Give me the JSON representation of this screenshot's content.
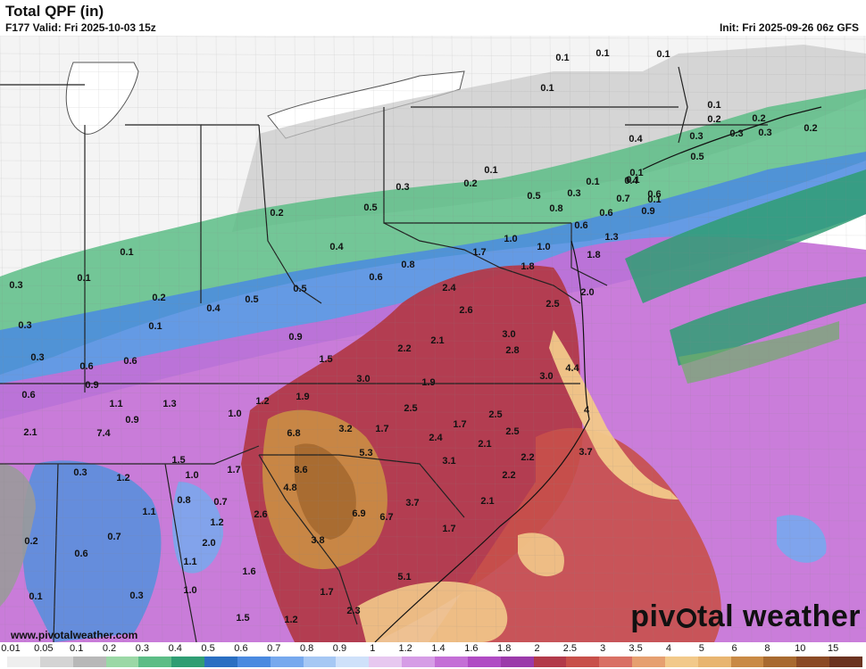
{
  "header": {
    "title": "Total QPF (in)",
    "valid": "F177 Valid: Fri 2025-10-03 15z",
    "init": "Init: Fri 2025-09-26 06z GFS"
  },
  "footer": {
    "url": "www.pivotalweather.com",
    "brand_pre": "piv",
    "brand_post": "tal weather"
  },
  "legend": {
    "ticks": [
      "0.01",
      "0.05",
      "0.1",
      "0.2",
      "0.3",
      "0.4",
      "0.5",
      "0.6",
      "0.7",
      "0.8",
      "0.9",
      "1",
      "1.2",
      "1.4",
      "1.6",
      "1.8",
      "2",
      "2.5",
      "3",
      "3.5",
      "4",
      "5",
      "6",
      "8",
      "10",
      "15"
    ],
    "colors": [
      "#eeeeee",
      "#d4d4d4",
      "#b8b8b8",
      "#9bd8a6",
      "#5cbd86",
      "#2f9e73",
      "#2a6fc2",
      "#4a8ae0",
      "#77a9ee",
      "#a6c8f4",
      "#cfe1fa",
      "#e7c8f0",
      "#d69de6",
      "#c46fd6",
      "#b04bc4",
      "#9b3aaa",
      "#b23a4a",
      "#c8504a",
      "#d97064",
      "#e6a070",
      "#f2c98a",
      "#e8b570",
      "#c98a45",
      "#a86a30",
      "#8a4a25",
      "#6a3320"
    ]
  },
  "map_labels": [
    {
      "v": "0.1"
    },
    {
      "v": "0.1"
    },
    {
      "v": "0.1"
    },
    {
      "v": "0.1"
    },
    {
      "v": "0.1"
    },
    {
      "v": "0.1"
    },
    {
      "v": "0.3"
    },
    {
      "v": "0.2"
    },
    {
      "v": "0.2"
    },
    {
      "v": "0.2"
    },
    {
      "v": "0.4"
    },
    {
      "v": "0.5"
    },
    {
      "v": "0.3"
    },
    {
      "v": "0.3"
    },
    {
      "v": "0.1"
    },
    {
      "v": "0.2"
    },
    {
      "v": "0.1"
    },
    {
      "v": "0.1"
    },
    {
      "v": "0.5"
    },
    {
      "v": "0.3"
    },
    {
      "v": "0.1"
    },
    {
      "v": "0.4"
    },
    {
      "v": "0.8"
    },
    {
      "v": "0.6"
    },
    {
      "v": "0.7"
    },
    {
      "v": "0.6"
    },
    {
      "v": "0.9"
    },
    {
      "v": "0.6"
    },
    {
      "v": "1.0"
    },
    {
      "v": "1.0"
    },
    {
      "v": "1.3"
    },
    {
      "v": "0.4"
    },
    {
      "v": "0.8"
    },
    {
      "v": "1.7"
    },
    {
      "v": "1.8"
    },
    {
      "v": "1.8"
    },
    {
      "v": "0.3"
    },
    {
      "v": "0.1"
    },
    {
      "v": "0.2"
    },
    {
      "v": "0.5"
    },
    {
      "v": "0.6"
    },
    {
      "v": "0.5"
    },
    {
      "v": "0.5"
    },
    {
      "v": "2.4"
    },
    {
      "v": "2.0"
    },
    {
      "v": "0.3"
    },
    {
      "v": "0.1"
    },
    {
      "v": "0.2"
    },
    {
      "v": "0.4"
    },
    {
      "v": "0.1"
    },
    {
      "v": "2.6"
    },
    {
      "v": "2.5"
    },
    {
      "v": "0.3"
    },
    {
      "v": "0.9"
    },
    {
      "v": "2.1"
    },
    {
      "v": "3.0"
    },
    {
      "v": "0.3"
    },
    {
      "v": "0.6"
    },
    {
      "v": "0.6"
    },
    {
      "v": "1.5"
    },
    {
      "v": "2.2"
    },
    {
      "v": "2.8"
    },
    {
      "v": "4.4"
    },
    {
      "v": "0.9"
    },
    {
      "v": "3.0"
    },
    {
      "v": "1.9"
    },
    {
      "v": "3.0"
    },
    {
      "v": "0.6"
    },
    {
      "v": "1.1"
    },
    {
      "v": "1.3"
    },
    {
      "v": "1.9"
    },
    {
      "v": "1.2"
    },
    {
      "v": "2.5"
    },
    {
      "v": "2.5"
    },
    {
      "v": "4"
    },
    {
      "v": "0.9"
    },
    {
      "v": "1.7"
    },
    {
      "v": "1.0"
    },
    {
      "v": "2.1"
    },
    {
      "v": "7.4"
    },
    {
      "v": "6.8"
    },
    {
      "v": "3.2"
    },
    {
      "v": "1.7"
    },
    {
      "v": "2.4"
    },
    {
      "v": "2.1"
    },
    {
      "v": "2.5"
    },
    {
      "v": "1.5"
    },
    {
      "v": "5.3"
    },
    {
      "v": "3.7"
    },
    {
      "v": "2.2"
    },
    {
      "v": "0.3"
    },
    {
      "v": "1.0"
    },
    {
      "v": "1.7"
    },
    {
      "v": "8.6"
    },
    {
      "v": "3.1"
    },
    {
      "v": "1.2"
    },
    {
      "v": "2.2"
    },
    {
      "v": "4.8"
    },
    {
      "v": "0.8"
    },
    {
      "v": "1.1"
    },
    {
      "v": "0.7"
    },
    {
      "v": "2.6"
    },
    {
      "v": "3.7"
    },
    {
      "v": "2.1"
    },
    {
      "v": "6.9"
    },
    {
      "v": "6.7"
    },
    {
      "v": "1.2"
    },
    {
      "v": "1.7"
    },
    {
      "v": "0.2"
    },
    {
      "v": "0.7"
    },
    {
      "v": "2.0"
    },
    {
      "v": "3.8"
    },
    {
      "v": "0.6"
    },
    {
      "v": "1.1"
    },
    {
      "v": "1.6"
    },
    {
      "v": "5.1"
    },
    {
      "v": "1.0"
    },
    {
      "v": "1.7"
    },
    {
      "v": "0.3"
    },
    {
      "v": "0.1"
    },
    {
      "v": "1.5"
    },
    {
      "v": "1.2"
    },
    {
      "v": "2.3"
    }
  ]
}
